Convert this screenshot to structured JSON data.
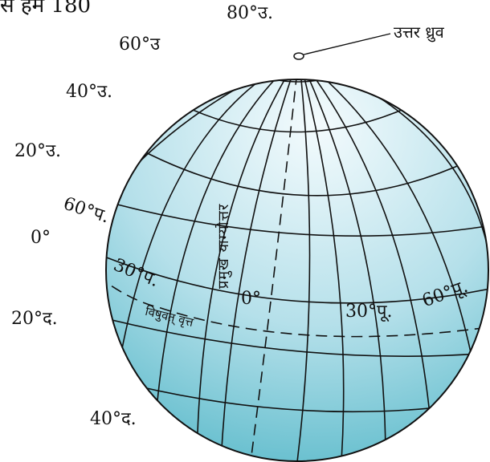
{
  "top_crop_text": "से हम 180",
  "north_pole_label": "उत्तर ध्रुव",
  "latitude_labels": {
    "lat80n": "80°उ.",
    "lat60n": "60°उ",
    "lat40n": "40°उ.",
    "lat20n": "20°उ.",
    "lat0": "0°",
    "lat20s": "20°द.",
    "lat40s": "40°द."
  },
  "longitude_labels": {
    "lon60w": "60°प.",
    "lon30w": "30°प.",
    "lon0": "0°",
    "lon30e": "30°पू.",
    "lon60e": "60°पू."
  },
  "equator_label": "विषुवत् वृत्त",
  "prime_meridian_label": "प्रमुख याम्योत्तर",
  "colors": {
    "sphere_center": "#eef9fc",
    "sphere_edge": "#6cc3d2",
    "line": "#111111"
  }
}
